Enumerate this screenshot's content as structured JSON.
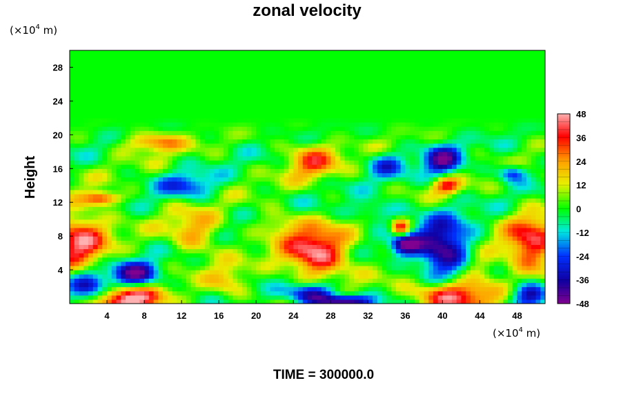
{
  "chart_data": {
    "type": "heatmap",
    "title": "zonal velocity",
    "ylabel": "Height",
    "x_unit": {
      "prefix": "(×10",
      "exponent": "4",
      "suffix": " m)"
    },
    "y_unit": {
      "prefix": "(×10",
      "exponent": "4",
      "suffix": " m)"
    },
    "xlim": [
      0,
      51
    ],
    "ylim": [
      0,
      30
    ],
    "x_ticks": [
      "4",
      "8",
      "12",
      "16",
      "20",
      "24",
      "28",
      "32",
      "36",
      "40",
      "44",
      "48"
    ],
    "y_ticks": [
      "4",
      "8",
      "12",
      "16",
      "20",
      "24",
      "28"
    ],
    "colorbar": {
      "range": [
        -48,
        48
      ],
      "labels": [
        "48",
        "36",
        "24",
        "12",
        "0",
        "-12",
        "-24",
        "-36",
        "-48"
      ],
      "colors": {
        "max": "#ffb0b0",
        "high": "#ff0000",
        "mid_high": "#ffa000",
        "mid_pos": "#e8f000",
        "zero": "#00ff00",
        "mid_neg": "#00e8e0",
        "low_neg": "#0030ff",
        "lower": "#1000a0",
        "min": "#800090"
      }
    },
    "features": [
      {
        "x": 1,
        "y": 7.5,
        "value": 40,
        "rx": 3,
        "ry": 3.5
      },
      {
        "x": 6.5,
        "y": 0.5,
        "value": 48,
        "rx": 3.5,
        "ry": 1.5
      },
      {
        "x": 13.5,
        "y": 8.5,
        "value": 24,
        "rx": 2.8,
        "ry": 2.5
      },
      {
        "x": 26.5,
        "y": 6,
        "value": 46,
        "rx": 3.5,
        "ry": 3
      },
      {
        "x": 41,
        "y": 1,
        "value": 48,
        "rx": 4,
        "ry": 1.8
      },
      {
        "x": 49.5,
        "y": 7,
        "value": 40,
        "rx": 2.8,
        "ry": 3.5
      },
      {
        "x": 26,
        "y": 17,
        "value": 28,
        "rx": 2.8,
        "ry": 2.2
      },
      {
        "x": 3.5,
        "y": 12.5,
        "value": 38,
        "rx": 2,
        "ry": 0.8
      },
      {
        "x": 9,
        "y": 19.3,
        "value": 30,
        "rx": 3,
        "ry": 1.2
      },
      {
        "x": 40.5,
        "y": 14,
        "value": 34,
        "rx": 1.5,
        "ry": 1
      },
      {
        "x": 35.5,
        "y": 9,
        "value": 40,
        "rx": 1,
        "ry": 1
      },
      {
        "x": 22.5,
        "y": 9.5,
        "value": 16,
        "rx": 2.5,
        "ry": 1.6
      },
      {
        "x": 7,
        "y": 3.5,
        "value": -40,
        "rx": 2.5,
        "ry": 1.5
      },
      {
        "x": 26,
        "y": 1.3,
        "value": -42,
        "rx": 2.5,
        "ry": 1.2
      },
      {
        "x": 29.5,
        "y": 0.3,
        "value": -48,
        "rx": 3,
        "ry": 0.8
      },
      {
        "x": 40,
        "y": 6.5,
        "value": -46,
        "rx": 3,
        "ry": 3.5
      },
      {
        "x": 36,
        "y": 7,
        "value": -40,
        "rx": 1.5,
        "ry": 1.2
      },
      {
        "x": 40,
        "y": 17,
        "value": -38,
        "rx": 2,
        "ry": 1.8
      },
      {
        "x": 49.5,
        "y": 1,
        "value": -44,
        "rx": 2,
        "ry": 1.5
      },
      {
        "x": 2,
        "y": 2,
        "value": -30,
        "rx": 2,
        "ry": 2
      },
      {
        "x": 33,
        "y": 11,
        "value": -18,
        "rx": 3,
        "ry": 1.2
      },
      {
        "x": 12.5,
        "y": 14,
        "value": -22,
        "rx": 3,
        "ry": 1.5
      },
      {
        "x": 47.5,
        "y": 15.5,
        "value": -30,
        "rx": 1.5,
        "ry": 1
      },
      {
        "x": 34,
        "y": 16.5,
        "value": -22,
        "rx": 2,
        "ry": 1.5
      },
      {
        "x": 17,
        "y": 2.5,
        "value": 18,
        "rx": 2.2,
        "ry": 2
      },
      {
        "x": 44,
        "y": 4,
        "value": 18,
        "rx": 2,
        "ry": 2
      }
    ]
  },
  "footer": {
    "time_label": "TIME = 300000.0"
  }
}
